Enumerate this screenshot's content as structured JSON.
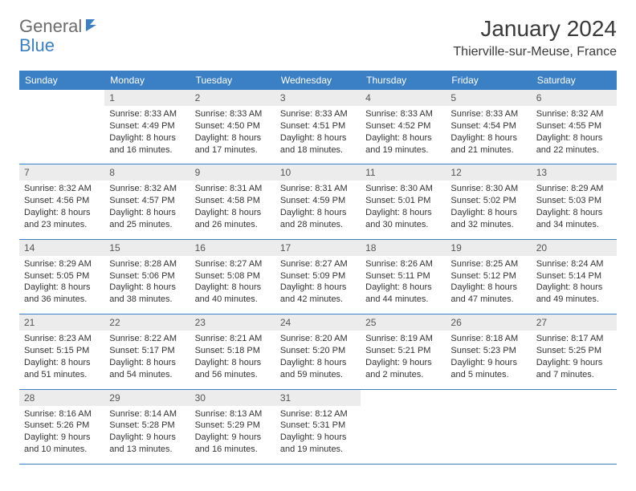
{
  "brand": {
    "part1": "General",
    "part2": "Blue"
  },
  "title": "January 2024",
  "location": "Thierville-sur-Meuse, France",
  "colors": {
    "header_bg": "#3b7fc4",
    "header_text": "#ffffff",
    "daynum_bg": "#ececec",
    "daynum_text": "#555555",
    "body_text": "#333333",
    "rule": "#3b7fc4",
    "page_bg": "#ffffff",
    "logo_grey": "#6c6c6c",
    "logo_blue": "#3b7fc4"
  },
  "typography": {
    "title_size": 28,
    "subtitle_size": 16,
    "header_size": 12,
    "daynum_size": 12,
    "body_size": 11
  },
  "weekdays": [
    "Sunday",
    "Monday",
    "Tuesday",
    "Wednesday",
    "Thursday",
    "Friday",
    "Saturday"
  ],
  "weeks": [
    [
      {
        "n": "",
        "sr": "",
        "ss": "",
        "dl": ""
      },
      {
        "n": "1",
        "sr": "Sunrise: 8:33 AM",
        "ss": "Sunset: 4:49 PM",
        "dl": "Daylight: 8 hours and 16 minutes."
      },
      {
        "n": "2",
        "sr": "Sunrise: 8:33 AM",
        "ss": "Sunset: 4:50 PM",
        "dl": "Daylight: 8 hours and 17 minutes."
      },
      {
        "n": "3",
        "sr": "Sunrise: 8:33 AM",
        "ss": "Sunset: 4:51 PM",
        "dl": "Daylight: 8 hours and 18 minutes."
      },
      {
        "n": "4",
        "sr": "Sunrise: 8:33 AM",
        "ss": "Sunset: 4:52 PM",
        "dl": "Daylight: 8 hours and 19 minutes."
      },
      {
        "n": "5",
        "sr": "Sunrise: 8:33 AM",
        "ss": "Sunset: 4:54 PM",
        "dl": "Daylight: 8 hours and 21 minutes."
      },
      {
        "n": "6",
        "sr": "Sunrise: 8:32 AM",
        "ss": "Sunset: 4:55 PM",
        "dl": "Daylight: 8 hours and 22 minutes."
      }
    ],
    [
      {
        "n": "7",
        "sr": "Sunrise: 8:32 AM",
        "ss": "Sunset: 4:56 PM",
        "dl": "Daylight: 8 hours and 23 minutes."
      },
      {
        "n": "8",
        "sr": "Sunrise: 8:32 AM",
        "ss": "Sunset: 4:57 PM",
        "dl": "Daylight: 8 hours and 25 minutes."
      },
      {
        "n": "9",
        "sr": "Sunrise: 8:31 AM",
        "ss": "Sunset: 4:58 PM",
        "dl": "Daylight: 8 hours and 26 minutes."
      },
      {
        "n": "10",
        "sr": "Sunrise: 8:31 AM",
        "ss": "Sunset: 4:59 PM",
        "dl": "Daylight: 8 hours and 28 minutes."
      },
      {
        "n": "11",
        "sr": "Sunrise: 8:30 AM",
        "ss": "Sunset: 5:01 PM",
        "dl": "Daylight: 8 hours and 30 minutes."
      },
      {
        "n": "12",
        "sr": "Sunrise: 8:30 AM",
        "ss": "Sunset: 5:02 PM",
        "dl": "Daylight: 8 hours and 32 minutes."
      },
      {
        "n": "13",
        "sr": "Sunrise: 8:29 AM",
        "ss": "Sunset: 5:03 PM",
        "dl": "Daylight: 8 hours and 34 minutes."
      }
    ],
    [
      {
        "n": "14",
        "sr": "Sunrise: 8:29 AM",
        "ss": "Sunset: 5:05 PM",
        "dl": "Daylight: 8 hours and 36 minutes."
      },
      {
        "n": "15",
        "sr": "Sunrise: 8:28 AM",
        "ss": "Sunset: 5:06 PM",
        "dl": "Daylight: 8 hours and 38 minutes."
      },
      {
        "n": "16",
        "sr": "Sunrise: 8:27 AM",
        "ss": "Sunset: 5:08 PM",
        "dl": "Daylight: 8 hours and 40 minutes."
      },
      {
        "n": "17",
        "sr": "Sunrise: 8:27 AM",
        "ss": "Sunset: 5:09 PM",
        "dl": "Daylight: 8 hours and 42 minutes."
      },
      {
        "n": "18",
        "sr": "Sunrise: 8:26 AM",
        "ss": "Sunset: 5:11 PM",
        "dl": "Daylight: 8 hours and 44 minutes."
      },
      {
        "n": "19",
        "sr": "Sunrise: 8:25 AM",
        "ss": "Sunset: 5:12 PM",
        "dl": "Daylight: 8 hours and 47 minutes."
      },
      {
        "n": "20",
        "sr": "Sunrise: 8:24 AM",
        "ss": "Sunset: 5:14 PM",
        "dl": "Daylight: 8 hours and 49 minutes."
      }
    ],
    [
      {
        "n": "21",
        "sr": "Sunrise: 8:23 AM",
        "ss": "Sunset: 5:15 PM",
        "dl": "Daylight: 8 hours and 51 minutes."
      },
      {
        "n": "22",
        "sr": "Sunrise: 8:22 AM",
        "ss": "Sunset: 5:17 PM",
        "dl": "Daylight: 8 hours and 54 minutes."
      },
      {
        "n": "23",
        "sr": "Sunrise: 8:21 AM",
        "ss": "Sunset: 5:18 PM",
        "dl": "Daylight: 8 hours and 56 minutes."
      },
      {
        "n": "24",
        "sr": "Sunrise: 8:20 AM",
        "ss": "Sunset: 5:20 PM",
        "dl": "Daylight: 8 hours and 59 minutes."
      },
      {
        "n": "25",
        "sr": "Sunrise: 8:19 AM",
        "ss": "Sunset: 5:21 PM",
        "dl": "Daylight: 9 hours and 2 minutes."
      },
      {
        "n": "26",
        "sr": "Sunrise: 8:18 AM",
        "ss": "Sunset: 5:23 PM",
        "dl": "Daylight: 9 hours and 5 minutes."
      },
      {
        "n": "27",
        "sr": "Sunrise: 8:17 AM",
        "ss": "Sunset: 5:25 PM",
        "dl": "Daylight: 9 hours and 7 minutes."
      }
    ],
    [
      {
        "n": "28",
        "sr": "Sunrise: 8:16 AM",
        "ss": "Sunset: 5:26 PM",
        "dl": "Daylight: 9 hours and 10 minutes."
      },
      {
        "n": "29",
        "sr": "Sunrise: 8:14 AM",
        "ss": "Sunset: 5:28 PM",
        "dl": "Daylight: 9 hours and 13 minutes."
      },
      {
        "n": "30",
        "sr": "Sunrise: 8:13 AM",
        "ss": "Sunset: 5:29 PM",
        "dl": "Daylight: 9 hours and 16 minutes."
      },
      {
        "n": "31",
        "sr": "Sunrise: 8:12 AM",
        "ss": "Sunset: 5:31 PM",
        "dl": "Daylight: 9 hours and 19 minutes."
      },
      {
        "n": "",
        "sr": "",
        "ss": "",
        "dl": ""
      },
      {
        "n": "",
        "sr": "",
        "ss": "",
        "dl": ""
      },
      {
        "n": "",
        "sr": "",
        "ss": "",
        "dl": ""
      }
    ]
  ]
}
